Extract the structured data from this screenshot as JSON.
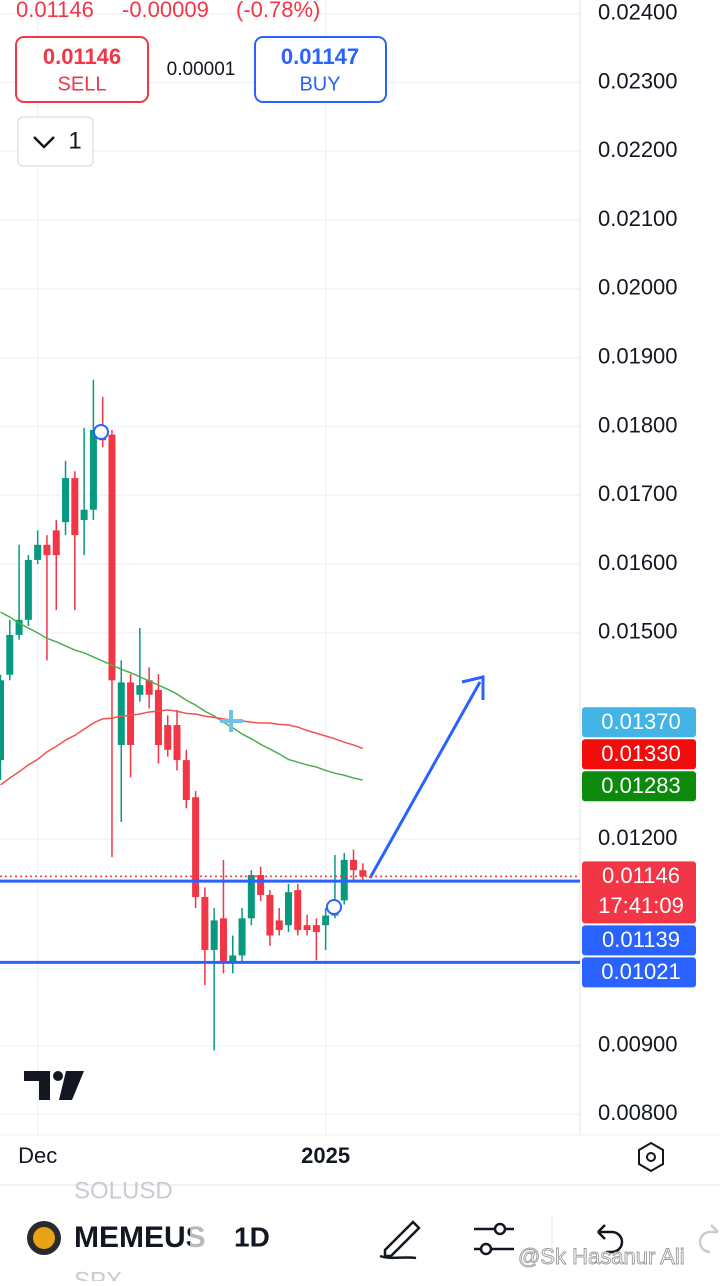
{
  "header": {
    "price": "0.01146",
    "change": "-0.00009",
    "change_pct": "(-0.78%)",
    "sell": {
      "price": "0.01146",
      "label": "SELL"
    },
    "spread": "0.00001",
    "buy": {
      "price": "0.01147",
      "label": "BUY"
    },
    "interval_count": "1"
  },
  "chart_data": {
    "type": "candlestick",
    "categories": [
      null,
      null,
      null,
      null,
      "Dec",
      null,
      null,
      null,
      null,
      null,
      null,
      null,
      null,
      null,
      null,
      null,
      null,
      null,
      null,
      null,
      null,
      null,
      null,
      null,
      null,
      null,
      null,
      null,
      null,
      null,
      null,
      null,
      null,
      null,
      null,
      "2025",
      null,
      null,
      null,
      null
    ],
    "candles": {
      "open": [
        0.01315,
        0.01439,
        0.01497,
        0.01519,
        0.01606,
        0.01628,
        0.01649,
        0.01661,
        0.01725,
        0.01664,
        0.01679,
        0.01795,
        0.01788,
        0.01337,
        0.01428,
        0.0141,
        0.01431,
        0.01417,
        0.01366,
        0.01366,
        0.01315,
        0.01261,
        0.01116,
        0.01039,
        0.01085,
        0.01021,
        0.01031,
        0.01085,
        0.01148,
        0.01119,
        0.01082,
        0.01075,
        0.01126,
        0.01075,
        0.01075,
        0.01075,
        0.01089,
        0.01111,
        0.0117,
        0.01155
      ],
      "high": [
        0.01439,
        0.01519,
        0.01628,
        0.01613,
        0.01649,
        0.01642,
        0.01664,
        0.0175,
        0.01735,
        0.01798,
        0.01868,
        0.01843,
        0.01795,
        0.0146,
        0.0144,
        0.01507,
        0.0145,
        0.0144,
        0.0138,
        0.01388,
        0.0133,
        0.0127,
        0.0113,
        0.011,
        0.0117,
        0.0106,
        0.011,
        0.01155,
        0.0116,
        0.01126,
        0.011,
        0.01135,
        0.01135,
        0.0109,
        0.01085,
        0.011,
        0.01177,
        0.0118,
        0.01185,
        0.01165
      ],
      "low": [
        0.01286,
        0.01431,
        0.0149,
        0.0151,
        0.016,
        0.0146,
        0.01533,
        0.01642,
        0.01533,
        0.01613,
        0.01664,
        0.0177,
        0.01174,
        0.01225,
        0.0129,
        0.014,
        0.0139,
        0.0131,
        0.0132,
        0.013,
        0.01245,
        0.011,
        0.00988,
        0.00893,
        0.01005,
        0.01005,
        0.0102,
        0.01075,
        0.0111,
        0.01045,
        0.0106,
        0.01065,
        0.0106,
        0.0106,
        0.01024,
        0.01039,
        0.01085,
        0.01105,
        0.0114,
        0.0114
      ],
      "close": [
        0.01431,
        0.01497,
        0.01519,
        0.01606,
        0.01628,
        0.01613,
        0.01613,
        0.01725,
        0.01642,
        0.01679,
        0.01795,
        0.0178,
        0.01431,
        0.01428,
        0.01337,
        0.01424,
        0.0141,
        0.01337,
        0.0133,
        0.01315,
        0.01257,
        0.01116,
        0.01039,
        0.01082,
        0.01021,
        0.01031,
        0.01085,
        0.01148,
        0.01119,
        0.0106,
        0.01068,
        0.01123,
        0.01068,
        0.01068,
        0.01065,
        0.01089,
        0.01111,
        0.0117,
        0.01155,
        0.01146
      ]
    },
    "up_color": "#089981",
    "down_color": "#f23645",
    "moving_averages": [
      {
        "color": "#4caf50",
        "values": [
          0.0153,
          0.01523,
          0.01514,
          0.01507,
          0.015,
          0.01492,
          0.01487,
          0.01481,
          0.01475,
          0.01471,
          0.01465,
          0.01459,
          0.01453,
          0.01447,
          0.01442,
          0.01436,
          0.0143,
          0.01424,
          0.01418,
          0.01411,
          0.01402,
          0.01395,
          0.01386,
          0.01379,
          0.0137,
          0.01362,
          0.01353,
          0.01346,
          0.01338,
          0.01331,
          0.01324,
          0.01316,
          0.01312,
          0.01308,
          0.01305,
          0.013,
          0.01296,
          0.01293,
          0.01289,
          0.01286
        ]
      },
      {
        "color": "#ef5350",
        "values": [
          0.01279,
          0.01289,
          0.01298,
          0.01308,
          0.01316,
          0.01327,
          0.01335,
          0.01344,
          0.01351,
          0.0136,
          0.01369,
          0.01375,
          0.01376,
          0.01379,
          0.0138,
          0.01382,
          0.01385,
          0.01386,
          0.01388,
          0.01386,
          0.01383,
          0.01382,
          0.01379,
          0.01377,
          0.01375,
          0.01373,
          0.01372,
          0.0137,
          0.01369,
          0.01369,
          0.01367,
          0.01366,
          0.01363,
          0.01358,
          0.01354,
          0.0135,
          0.01346,
          0.01341,
          0.01337,
          0.01332
        ]
      }
    ],
    "price_labels": [
      {
        "value": 0.0137,
        "label": "0.01370",
        "color": "#42b4e6"
      },
      {
        "value": 0.0133,
        "label": "0.01330",
        "color": "#f20c0c"
      },
      {
        "value": 0.01283,
        "label": "0.01283",
        "color": "#0c8a0c"
      },
      {
        "value": 0.01146,
        "label": "0.01146",
        "sub": "17:41:09",
        "color": "#f23645",
        "line": "dotted"
      },
      {
        "value": 0.01139,
        "label": "0.01139",
        "color": "#2962ff",
        "line": "solid"
      },
      {
        "value": 0.01021,
        "label": "0.01021",
        "color": "#2962ff",
        "line": "solid"
      }
    ],
    "ylim": [
      0.0077,
      0.0242
    ],
    "yticks": [
      {
        "value": 0.024,
        "label": "0.02400"
      },
      {
        "value": 0.023,
        "label": "0.02300"
      },
      {
        "value": 0.022,
        "label": "0.02200"
      },
      {
        "value": 0.021,
        "label": "0.02100"
      },
      {
        "value": 0.02,
        "label": "0.02000"
      },
      {
        "value": 0.019,
        "label": "0.01900"
      },
      {
        "value": 0.018,
        "label": "0.01800"
      },
      {
        "value": 0.017,
        "label": "0.01700"
      },
      {
        "value": 0.016,
        "label": "0.01600"
      },
      {
        "value": 0.015,
        "label": "0.01500"
      },
      {
        "value": 0.012,
        "label": "0.01200"
      },
      {
        "value": 0.009,
        "label": "0.00900"
      },
      {
        "value": 0.008,
        "label": "0.00800"
      }
    ],
    "grid": true
  },
  "toolbar": {
    "symbol_above": "SOLUSD",
    "symbol": "MEMEUS",
    "timeframe": "1D",
    "symbol_below": "SPX",
    "watermark": "@Sk Hasanur Ali"
  }
}
